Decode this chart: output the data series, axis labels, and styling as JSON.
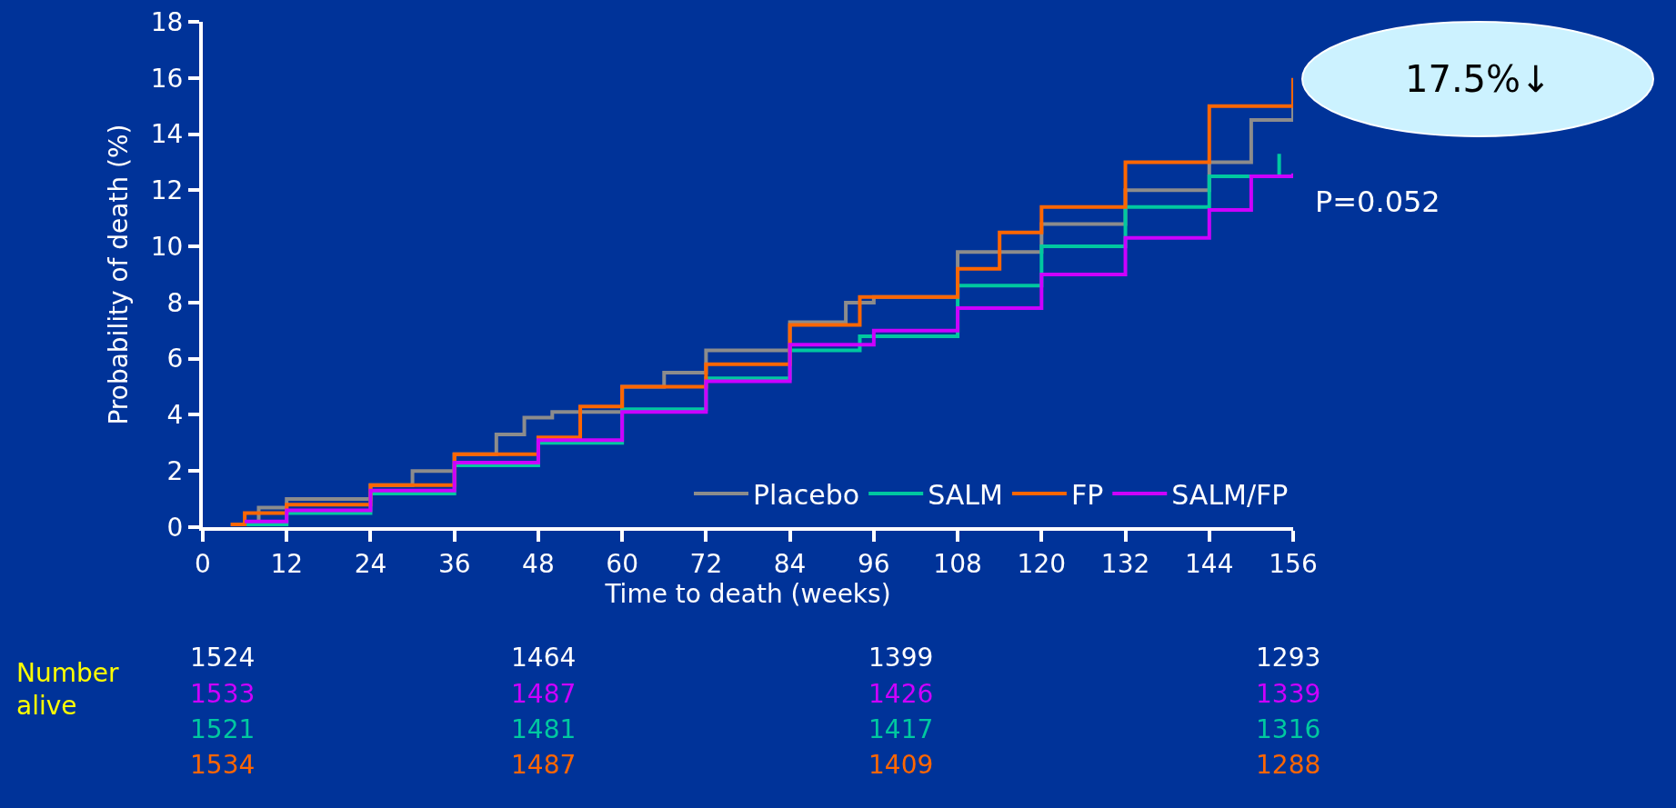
{
  "chart_data": {
    "type": "step",
    "xlabel": "Time to death (weeks)",
    "ylabel": "Probability of death (%)",
    "xlim": [
      0,
      156
    ],
    "xticks": [
      0,
      12,
      24,
      36,
      48,
      60,
      72,
      84,
      96,
      108,
      120,
      132,
      144,
      156
    ],
    "ylim": [
      0,
      18
    ],
    "yticks": [
      0,
      2,
      4,
      6,
      8,
      10,
      12,
      14,
      16,
      18
    ],
    "grid": false,
    "legend": "bottom right",
    "marker": "none",
    "line_style": "solid",
    "series": [
      {
        "name": "Placebo",
        "color": "#8c8c8c",
        "x": [
          4,
          8,
          12,
          24,
          30,
          36,
          42,
          46,
          50,
          60,
          66,
          72,
          84,
          92,
          96,
          108,
          120,
          132,
          144,
          150,
          156
        ],
        "values": [
          0.1,
          0.7,
          1.0,
          1.5,
          2.0,
          2.6,
          3.3,
          3.9,
          4.1,
          5.0,
          5.5,
          6.3,
          7.3,
          8.0,
          8.2,
          9.8,
          10.8,
          12.0,
          13.0,
          14.5,
          15.0
        ]
      },
      {
        "name": "SALM",
        "color": "#00c8a0",
        "x": [
          6,
          12,
          24,
          36,
          48,
          60,
          72,
          84,
          94,
          108,
          120,
          132,
          144,
          154
        ],
        "values": [
          0.1,
          0.5,
          1.2,
          2.2,
          3.0,
          4.2,
          5.3,
          6.3,
          6.8,
          8.6,
          10.0,
          11.4,
          12.5,
          13.3
        ]
      },
      {
        "name": "FP",
        "color": "#ff6600",
        "x": [
          4,
          6,
          12,
          24,
          36,
          48,
          54,
          60,
          72,
          84,
          94,
          108,
          114,
          120,
          132,
          144,
          156
        ],
        "values": [
          0.1,
          0.5,
          0.8,
          1.5,
          2.6,
          3.2,
          4.3,
          5.0,
          5.8,
          7.2,
          8.2,
          9.2,
          10.5,
          11.4,
          13.0,
          15.0,
          16.0
        ]
      },
      {
        "name": "SALM/FP",
        "color": "#cc00ff",
        "x": [
          6,
          12,
          24,
          36,
          48,
          60,
          72,
          84,
          96,
          108,
          120,
          132,
          144,
          150,
          156
        ],
        "values": [
          0.2,
          0.6,
          1.3,
          2.3,
          3.1,
          4.1,
          5.2,
          6.5,
          7.0,
          7.8,
          9.0,
          10.3,
          11.3,
          12.5,
          12.6
        ]
      }
    ],
    "annotations": [
      "17.5%↓",
      "P=0.052",
      "Number alive",
      "1524",
      "1464",
      "1399",
      "1293",
      "1533",
      "1487",
      "1426",
      "1339",
      "1521",
      "1481",
      "1417",
      "1316",
      "1534",
      "1487",
      "1409",
      "1288"
    ]
  }
}
